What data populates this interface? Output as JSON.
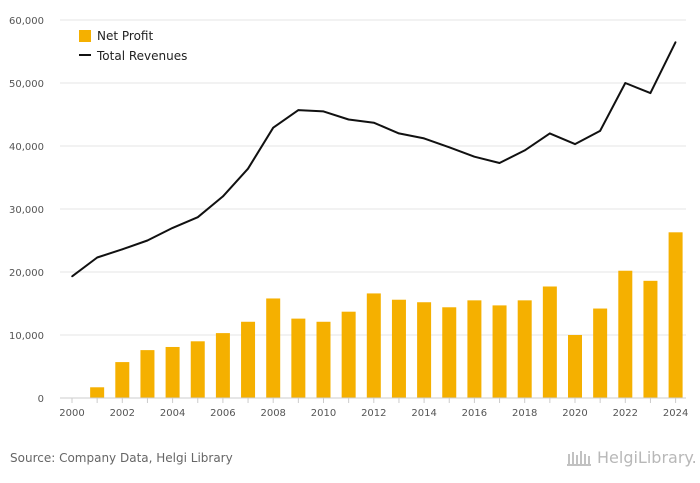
{
  "chart_data": {
    "type": "bar",
    "title": "",
    "xlabel": "",
    "ylabel": "",
    "ylim": [
      0,
      60000
    ],
    "y_ticks": [
      0,
      10000,
      20000,
      30000,
      40000,
      50000,
      60000
    ],
    "y_tick_labels": [
      "0",
      "10,000",
      "20,000",
      "30,000",
      "40,000",
      "50,000",
      "60,000"
    ],
    "grid": true,
    "legend_position": "top-left",
    "x": [
      2000,
      2001,
      2002,
      2003,
      2004,
      2005,
      2006,
      2007,
      2008,
      2009,
      2010,
      2011,
      2012,
      2013,
      2014,
      2015,
      2016,
      2017,
      2018,
      2019,
      2020,
      2021,
      2022,
      2023,
      2024
    ],
    "x_tick_labels": [
      "2000",
      "2002",
      "2004",
      "2006",
      "2008",
      "2010",
      "2012",
      "2014",
      "2016",
      "2018",
      "2020",
      "2022",
      "2024"
    ],
    "series": [
      {
        "name": "Net Profit",
        "type": "bar",
        "color": "#f5b000",
        "values": [
          null,
          1700,
          5700,
          7600,
          8100,
          9000,
          10300,
          12100,
          15800,
          12600,
          12100,
          13700,
          16600,
          15600,
          15200,
          14400,
          15500,
          14700,
          15500,
          17700,
          10000,
          14200,
          20200,
          18600,
          26300
        ]
      },
      {
        "name": "Total Revenues",
        "type": "line",
        "color": "#111111",
        "values": [
          19300,
          22300,
          23600,
          25000,
          27000,
          28700,
          32000,
          36400,
          42900,
          45700,
          45500,
          44200,
          43700,
          42000,
          41200,
          39800,
          38300,
          37300,
          39300,
          42000,
          40300,
          42400,
          50000,
          48400,
          56500
        ]
      }
    ]
  },
  "footer": {
    "source": "Source: Company Data, Helgi Library",
    "brand": "HelgiLibrary."
  }
}
